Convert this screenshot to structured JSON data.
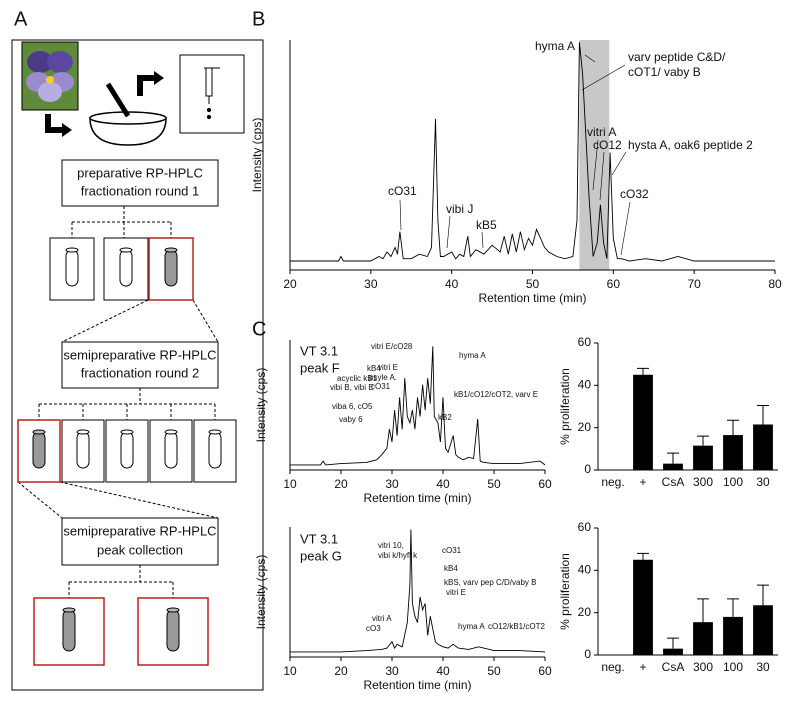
{
  "panel_labels": [
    "A",
    "B",
    "C"
  ],
  "diagram": {
    "steps": [
      {
        "lines": [
          "preparative RP-HPLC",
          "fractionation round 1"
        ]
      },
      {
        "lines": [
          "semipreparative RP-HPLC",
          "fractionation round 2"
        ]
      },
      {
        "lines": [
          "semipreparative RP-HPLC",
          "peak collection"
        ]
      }
    ]
  },
  "chart_data": [
    {
      "type": "line",
      "y_label": "Intensity (cps)",
      "x_label": "Retention time (min)",
      "color": "#000000",
      "xlim": [
        20,
        80
      ],
      "xticks": [
        20,
        30,
        40,
        50,
        60,
        70,
        80
      ],
      "ylim": [
        -2,
        100
      ],
      "shaded_range": [
        55.8,
        59.5
      ],
      "x": [
        20,
        26,
        26.3,
        26.6,
        30,
        31,
        31.5,
        32,
        32.5,
        33,
        33.3,
        33.6,
        34,
        35,
        36,
        37,
        37.5,
        38,
        38.3,
        38.6,
        39,
        40,
        40.5,
        41,
        41.5,
        42,
        42.3,
        43,
        44,
        45,
        46,
        46.5,
        47,
        47.5,
        48,
        48.5,
        49,
        49.5,
        50,
        50.5,
        51,
        51.5,
        52,
        53,
        54,
        55,
        55.5,
        55.8,
        56.2,
        57,
        57.5,
        58,
        58.4,
        58.8,
        59.2,
        59.6,
        60,
        60.5,
        61,
        62,
        64,
        66,
        68,
        70,
        75,
        80
      ],
      "values": [
        2,
        2,
        4,
        2,
        2,
        4,
        3,
        6,
        4,
        8,
        5,
        15,
        3,
        3,
        5,
        4,
        8,
        65,
        20,
        4,
        4,
        6,
        3,
        5,
        4,
        13,
        4,
        7,
        5,
        9,
        6,
        13,
        5,
        14,
        6,
        15,
        7,
        12,
        9,
        16,
        12,
        8,
        6,
        4,
        3,
        4,
        20,
        99,
        85,
        30,
        4,
        10,
        27,
        10,
        3,
        50,
        12,
        3,
        3,
        2,
        3,
        2,
        4,
        2,
        2,
        2
      ],
      "annotations": [
        "hyma A",
        "varv peptide C&D/",
        "cOT1/ vaby B",
        "vitri A",
        "cO12",
        "hysta A, oak6 peptide 2",
        "cO31",
        "vibi J",
        "kB5",
        "cO32"
      ]
    },
    {
      "type": "line",
      "labels": [
        "VT 3.1",
        "peak F"
      ],
      "y_label": "Intensity (cps)",
      "x_label": "Retention time (min)",
      "color": "#000000",
      "xlim": [
        10,
        60
      ],
      "xticks": [
        10,
        20,
        30,
        40,
        50,
        60
      ],
      "ylim": [
        -2,
        100
      ],
      "x": [
        10,
        16,
        16.5,
        17,
        20,
        25,
        27,
        28,
        29,
        29.5,
        30,
        30.5,
        31,
        31.5,
        32,
        32.5,
        33,
        33.5,
        34,
        34.5,
        35,
        35.5,
        36,
        36.5,
        37,
        37.5,
        38,
        38.3,
        39,
        39.5,
        40,
        40.5,
        41,
        42,
        42.5,
        43,
        44,
        45,
        46,
        46.8,
        47.3,
        48,
        50,
        55,
        59,
        60
      ],
      "values": [
        2,
        2,
        5,
        2,
        3,
        4,
        6,
        10,
        15,
        30,
        20,
        45,
        25,
        55,
        30,
        70,
        40,
        35,
        45,
        30,
        55,
        40,
        65,
        45,
        70,
        50,
        95,
        40,
        35,
        20,
        55,
        15,
        12,
        25,
        10,
        8,
        6,
        8,
        7,
        38,
        5,
        4,
        3,
        3,
        5,
        2
      ],
      "annotations": [
        "vitri E/cO28",
        "hyma A",
        "kB4",
        "vitri E",
        "psyle A.",
        "acyclic kB1",
        "cO31",
        "vibi B, vibi E",
        "viba 6, cO5",
        "vaby 6",
        "kB1/cO12/cOT2, varv E",
        "kB2"
      ]
    },
    {
      "type": "bar",
      "y_label": "% proliferation",
      "color": "#000000",
      "categories": [
        "neg.",
        "+",
        "CsA",
        "300",
        "100",
        "30"
      ],
      "values": [
        0,
        45,
        3,
        11.5,
        16.5,
        21.5
      ],
      "errors": [
        null,
        3,
        5,
        4.5,
        7,
        9
      ],
      "ylim": [
        0,
        60
      ],
      "yticks": [
        0,
        20,
        40,
        60
      ]
    },
    {
      "type": "line",
      "labels": [
        "VT 3.1",
        "peak G"
      ],
      "y_label": "Intensity (cps)",
      "x_label": "Retention time (min)",
      "color": "#000000",
      "xlim": [
        10,
        60
      ],
      "xticks": [
        10,
        20,
        30,
        40,
        50,
        60
      ],
      "ylim": [
        -2,
        100
      ],
      "x": [
        10,
        20,
        25,
        28,
        29,
        30,
        30.5,
        31,
        32,
        33,
        33.5,
        33.7,
        34,
        34.5,
        35,
        35.5,
        36,
        36.5,
        37,
        37.5,
        38,
        38.5,
        39,
        40,
        41,
        42,
        43,
        45,
        47,
        50,
        55,
        60
      ],
      "values": [
        2,
        2,
        3,
        4,
        5,
        10,
        5,
        8,
        6,
        25,
        55,
        98,
        40,
        30,
        25,
        45,
        35,
        40,
        15,
        30,
        20,
        10,
        8,
        6,
        5,
        8,
        5,
        4,
        6,
        3,
        3,
        2
      ],
      "annotations": [
        "vitri 10,",
        "vibi k/hyfl k",
        "cO31",
        "kB4",
        "kBS, varv pep C/D/vaby B",
        "vitri E",
        "vitri A",
        "cO3",
        "hyma A",
        "cO12/kB1/cOT2"
      ]
    },
    {
      "type": "bar",
      "y_label": "% proliferation",
      "color": "#000000",
      "categories": [
        "neg.",
        "+",
        "CsA",
        "300",
        "100",
        "30"
      ],
      "values": [
        0,
        45,
        3,
        15.5,
        18,
        23.5
      ],
      "errors": [
        null,
        3,
        5,
        11,
        8.5,
        9.5
      ],
      "ylim": [
        0,
        60
      ],
      "yticks": [
        0,
        20,
        40,
        60
      ]
    }
  ]
}
